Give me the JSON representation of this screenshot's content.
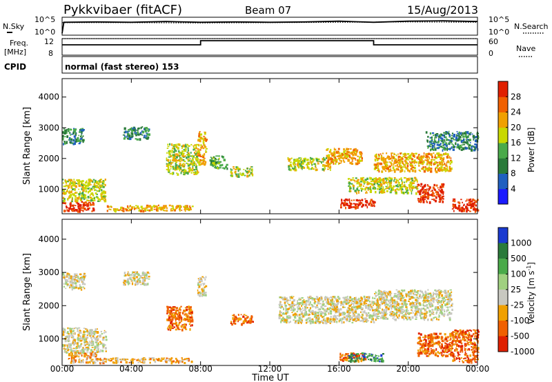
{
  "header": {
    "title": "Pykkvibaer (fitACF)",
    "beam": "Beam 07",
    "date": "15/Aug/2013"
  },
  "panel_labels": {
    "nsky": "N.Sky",
    "nsearch": "N.Search",
    "freq_line1": "Freq.",
    "freq_line2": "[MHz]",
    "nave": "Nave",
    "cpid": "CPID",
    "mode": "normal (fast stereo) 153"
  },
  "chart_data": [
    {
      "type": "line",
      "panel": "noise",
      "left_ticks": [
        "10^5",
        "10^0"
      ],
      "right_ticks": [
        "10^5",
        "10^0"
      ],
      "series": [
        {
          "name": "N.Sky",
          "style": "solid",
          "x": [
            0,
            0.1,
            2,
            4,
            6,
            8,
            10,
            12,
            14,
            16,
            18,
            20,
            22,
            24
          ],
          "y": [
            0.5,
            3.6,
            3.7,
            3.6,
            3.8,
            3.6,
            3.7,
            3.6,
            3.7,
            3.9,
            3.6,
            3.9,
            4.0,
            3.8
          ]
        },
        {
          "name": "N.Search",
          "style": "dotted",
          "x": [
            0,
            4,
            8,
            12,
            16,
            20,
            24
          ],
          "y": [
            3.5,
            3.5,
            3.4,
            3.5,
            3.6,
            3.7,
            3.6
          ]
        }
      ],
      "ylim": [
        0,
        5
      ]
    },
    {
      "type": "line",
      "panel": "frequency",
      "left_ticks": [
        "12",
        "8"
      ],
      "right_ticks": [
        "60",
        "0"
      ],
      "series": [
        {
          "name": "Freq.",
          "style": "solid",
          "x": [
            0,
            8,
            8,
            18,
            18,
            24
          ],
          "y": [
            10.5,
            10.5,
            11.5,
            11.5,
            10.5,
            10.5
          ]
        },
        {
          "name": "Nave",
          "style": "dotted",
          "x": [
            0,
            24
          ],
          "y": [
            12,
            12
          ]
        }
      ],
      "ylim": [
        8,
        12
      ]
    },
    {
      "type": "heatmap",
      "panel": "power",
      "ylabel": "Slant Range [km]",
      "yticks": [
        "1000",
        "2000",
        "3000",
        "4000"
      ],
      "ylim": [
        200,
        4600
      ],
      "xlim": [
        0,
        24
      ],
      "colorbar_label": "Power [dB]",
      "colorbar_ticks": [
        "4",
        "8",
        "12",
        "16",
        "20",
        "24",
        "28"
      ],
      "colors": [
        "#1a1aff",
        "#2060c0",
        "#2a7a3a",
        "#4aaa4a",
        "#c8d800",
        "#f0a000",
        "#f06000",
        "#e02000"
      ],
      "regions": [
        {
          "t0": 0.0,
          "t1": 1.8,
          "r0": 300,
          "r1": 620,
          "level": 7
        },
        {
          "t0": 0.0,
          "t1": 2.5,
          "r0": 620,
          "r1": 1350,
          "level": 4
        },
        {
          "t0": 0.0,
          "t1": 1.2,
          "r0": 2500,
          "r1": 3000,
          "level": 2
        },
        {
          "t0": 2.5,
          "t1": 7.5,
          "r0": 320,
          "r1": 500,
          "level": 5
        },
        {
          "t0": 3.5,
          "t1": 5.0,
          "r0": 2650,
          "r1": 3050,
          "level": 2
        },
        {
          "t0": 6.0,
          "t1": 7.8,
          "r0": 1500,
          "r1": 2500,
          "level": 4
        },
        {
          "t0": 7.8,
          "t1": 8.3,
          "r0": 1800,
          "r1": 2900,
          "level": 5
        },
        {
          "t0": 8.5,
          "t1": 9.5,
          "r0": 1700,
          "r1": 2100,
          "level": 3
        },
        {
          "t0": 9.7,
          "t1": 11.0,
          "r0": 1450,
          "r1": 1750,
          "level": 4
        },
        {
          "t0": 13.0,
          "t1": 15.5,
          "r0": 1650,
          "r1": 2050,
          "level": 4
        },
        {
          "t0": 15.2,
          "t1": 17.3,
          "r0": 1850,
          "r1": 2350,
          "level": 5
        },
        {
          "t0": 16.0,
          "t1": 18.0,
          "r0": 420,
          "r1": 700,
          "level": 7
        },
        {
          "t0": 16.5,
          "t1": 20.5,
          "r0": 900,
          "r1": 1400,
          "level": 4
        },
        {
          "t0": 18.0,
          "t1": 22.5,
          "r0": 1600,
          "r1": 2200,
          "level": 5
        },
        {
          "t0": 20.5,
          "t1": 22.0,
          "r0": 600,
          "r1": 1200,
          "level": 7
        },
        {
          "t0": 22.5,
          "t1": 24.0,
          "r0": 300,
          "r1": 700,
          "level": 7
        },
        {
          "t0": 21.0,
          "t1": 24.0,
          "r0": 2300,
          "r1": 2900,
          "level": 2
        }
      ]
    },
    {
      "type": "heatmap",
      "panel": "velocity",
      "ylabel": "Slant Range [km]",
      "yticks": [
        "1000",
        "2000",
        "3000",
        "4000"
      ],
      "ylim": [
        200,
        4600
      ],
      "xlim": [
        0,
        24
      ],
      "xticks": [
        "00:00",
        "04:00",
        "08:00",
        "12:00",
        "16:00",
        "20:00",
        "00:00"
      ],
      "xlabel": "Time UT",
      "colorbar_label": "Velocity [m s-1]",
      "colorbar_ticks": [
        "1000",
        "500",
        "100",
        "25",
        "-25",
        "-100",
        "-500",
        "-1000"
      ],
      "colors": [
        "#1a3ad0",
        "#2a7a3a",
        "#4aaa4a",
        "#a0d080",
        "#c8c8c0",
        "#f0a000",
        "#f06000",
        "#e02000"
      ],
      "regions": [
        {
          "t0": 0.0,
          "t1": 2.5,
          "r0": 600,
          "r1": 1350,
          "level": 4
        },
        {
          "t0": 0.3,
          "t1": 2.0,
          "r0": 300,
          "r1": 600,
          "level": 5
        },
        {
          "t0": 2.0,
          "t1": 7.5,
          "r0": 300,
          "r1": 450,
          "level": 5
        },
        {
          "t0": 0.0,
          "t1": 1.3,
          "r0": 2500,
          "r1": 3000,
          "level": 4
        },
        {
          "t0": 3.5,
          "t1": 5.0,
          "r0": 2650,
          "r1": 3050,
          "level": 4
        },
        {
          "t0": 6.0,
          "t1": 7.5,
          "r0": 1300,
          "r1": 2000,
          "level": 6
        },
        {
          "t0": 7.8,
          "t1": 8.3,
          "r0": 2300,
          "r1": 2900,
          "level": 4
        },
        {
          "t0": 9.7,
          "t1": 11.0,
          "r0": 1450,
          "r1": 1750,
          "level": 6
        },
        {
          "t0": 12.5,
          "t1": 18.0,
          "r0": 1500,
          "r1": 2300,
          "level": 4
        },
        {
          "t0": 16.0,
          "t1": 17.5,
          "r0": 350,
          "r1": 600,
          "level": 6
        },
        {
          "t0": 16.5,
          "t1": 18.5,
          "r0": 350,
          "r1": 600,
          "level": 1
        },
        {
          "t0": 18.0,
          "t1": 22.5,
          "r0": 1600,
          "r1": 2500,
          "level": 4
        },
        {
          "t0": 20.5,
          "t1": 22.5,
          "r0": 500,
          "r1": 1200,
          "level": 6
        },
        {
          "t0": 22.5,
          "t1": 24.0,
          "r0": 300,
          "r1": 1300,
          "level": 6
        }
      ]
    }
  ]
}
